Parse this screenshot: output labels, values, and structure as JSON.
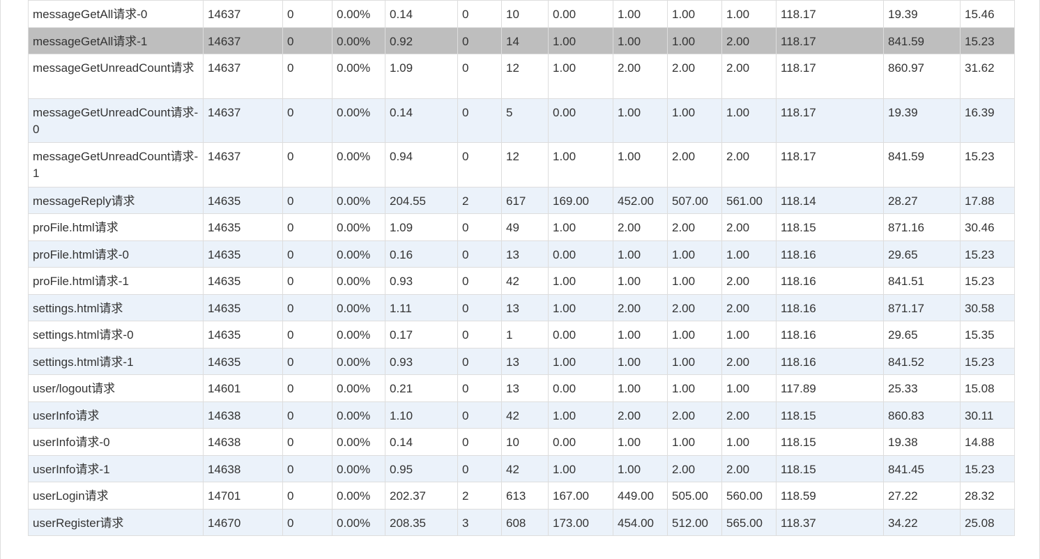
{
  "colors": {
    "row_odd": "#ffffff",
    "row_even": "#ebf2fa",
    "row_selected": "#bebebe",
    "border": "#dddddd",
    "text": "#333333"
  },
  "rows": [
    {
      "label": "messageGetAll请求-0",
      "cells": [
        "14637",
        "0",
        "0.00%",
        "0.14",
        "0",
        "10",
        "0.00",
        "1.00",
        "1.00",
        "1.00",
        "118.17",
        "19.39",
        "15.46"
      ],
      "style": "odd",
      "tall": false
    },
    {
      "label": "messageGetAll请求-1",
      "cells": [
        "14637",
        "0",
        "0.00%",
        "0.92",
        "0",
        "14",
        "1.00",
        "1.00",
        "1.00",
        "2.00",
        "118.17",
        "841.59",
        "15.23"
      ],
      "style": "selected",
      "tall": false
    },
    {
      "label": "messageGetUnreadCount请求",
      "cells": [
        "14637",
        "0",
        "0.00%",
        "1.09",
        "0",
        "12",
        "1.00",
        "2.00",
        "2.00",
        "2.00",
        "118.17",
        "860.97",
        "31.62"
      ],
      "style": "odd",
      "tall": true
    },
    {
      "label": "messageGetUnreadCount请求-0",
      "cells": [
        "14637",
        "0",
        "0.00%",
        "0.14",
        "0",
        "5",
        "0.00",
        "1.00",
        "1.00",
        "1.00",
        "118.17",
        "19.39",
        "16.39"
      ],
      "style": "even",
      "tall": true
    },
    {
      "label": "messageGetUnreadCount请求-1",
      "cells": [
        "14637",
        "0",
        "0.00%",
        "0.94",
        "0",
        "12",
        "1.00",
        "1.00",
        "2.00",
        "2.00",
        "118.17",
        "841.59",
        "15.23"
      ],
      "style": "odd",
      "tall": true
    },
    {
      "label": "messageReply请求",
      "cells": [
        "14635",
        "0",
        "0.00%",
        "204.55",
        "2",
        "617",
        "169.00",
        "452.00",
        "507.00",
        "561.00",
        "118.14",
        "28.27",
        "17.88"
      ],
      "style": "even",
      "tall": false
    },
    {
      "label": "proFile.html请求",
      "cells": [
        "14635",
        "0",
        "0.00%",
        "1.09",
        "0",
        "49",
        "1.00",
        "2.00",
        "2.00",
        "2.00",
        "118.15",
        "871.16",
        "30.46"
      ],
      "style": "odd",
      "tall": false
    },
    {
      "label": "proFile.html请求-0",
      "cells": [
        "14635",
        "0",
        "0.00%",
        "0.16",
        "0",
        "13",
        "0.00",
        "1.00",
        "1.00",
        "1.00",
        "118.16",
        "29.65",
        "15.23"
      ],
      "style": "even",
      "tall": false
    },
    {
      "label": "proFile.html请求-1",
      "cells": [
        "14635",
        "0",
        "0.00%",
        "0.93",
        "0",
        "42",
        "1.00",
        "1.00",
        "1.00",
        "2.00",
        "118.16",
        "841.51",
        "15.23"
      ],
      "style": "odd",
      "tall": false
    },
    {
      "label": "settings.html请求",
      "cells": [
        "14635",
        "0",
        "0.00%",
        "1.11",
        "0",
        "13",
        "1.00",
        "2.00",
        "2.00",
        "2.00",
        "118.16",
        "871.17",
        "30.58"
      ],
      "style": "even",
      "tall": false
    },
    {
      "label": "settings.html请求-0",
      "cells": [
        "14635",
        "0",
        "0.00%",
        "0.17",
        "0",
        "1",
        "0.00",
        "1.00",
        "1.00",
        "1.00",
        "118.16",
        "29.65",
        "15.35"
      ],
      "style": "odd",
      "tall": false
    },
    {
      "label": "settings.html请求-1",
      "cells": [
        "14635",
        "0",
        "0.00%",
        "0.93",
        "0",
        "13",
        "1.00",
        "1.00",
        "1.00",
        "2.00",
        "118.16",
        "841.52",
        "15.23"
      ],
      "style": "even",
      "tall": false
    },
    {
      "label": "user/logout请求",
      "cells": [
        "14601",
        "0",
        "0.00%",
        "0.21",
        "0",
        "13",
        "0.00",
        "1.00",
        "1.00",
        "1.00",
        "117.89",
        "25.33",
        "15.08"
      ],
      "style": "odd",
      "tall": false
    },
    {
      "label": "userInfo请求",
      "cells": [
        "14638",
        "0",
        "0.00%",
        "1.10",
        "0",
        "42",
        "1.00",
        "2.00",
        "2.00",
        "2.00",
        "118.15",
        "860.83",
        "30.11"
      ],
      "style": "even",
      "tall": false
    },
    {
      "label": "userInfo请求-0",
      "cells": [
        "14638",
        "0",
        "0.00%",
        "0.14",
        "0",
        "10",
        "0.00",
        "1.00",
        "1.00",
        "1.00",
        "118.15",
        "19.38",
        "14.88"
      ],
      "style": "odd",
      "tall": false
    },
    {
      "label": "userInfo请求-1",
      "cells": [
        "14638",
        "0",
        "0.00%",
        "0.95",
        "0",
        "42",
        "1.00",
        "1.00",
        "2.00",
        "2.00",
        "118.15",
        "841.45",
        "15.23"
      ],
      "style": "even",
      "tall": false
    },
    {
      "label": "userLogin请求",
      "cells": [
        "14701",
        "0",
        "0.00%",
        "202.37",
        "2",
        "613",
        "167.00",
        "449.00",
        "505.00",
        "560.00",
        "118.59",
        "27.22",
        "28.32"
      ],
      "style": "odd",
      "tall": false
    },
    {
      "label": "userRegister请求",
      "cells": [
        "14670",
        "0",
        "0.00%",
        "208.35",
        "3",
        "608",
        "173.00",
        "454.00",
        "512.00",
        "565.00",
        "118.37",
        "34.22",
        "25.08"
      ],
      "style": "even",
      "tall": false
    }
  ]
}
